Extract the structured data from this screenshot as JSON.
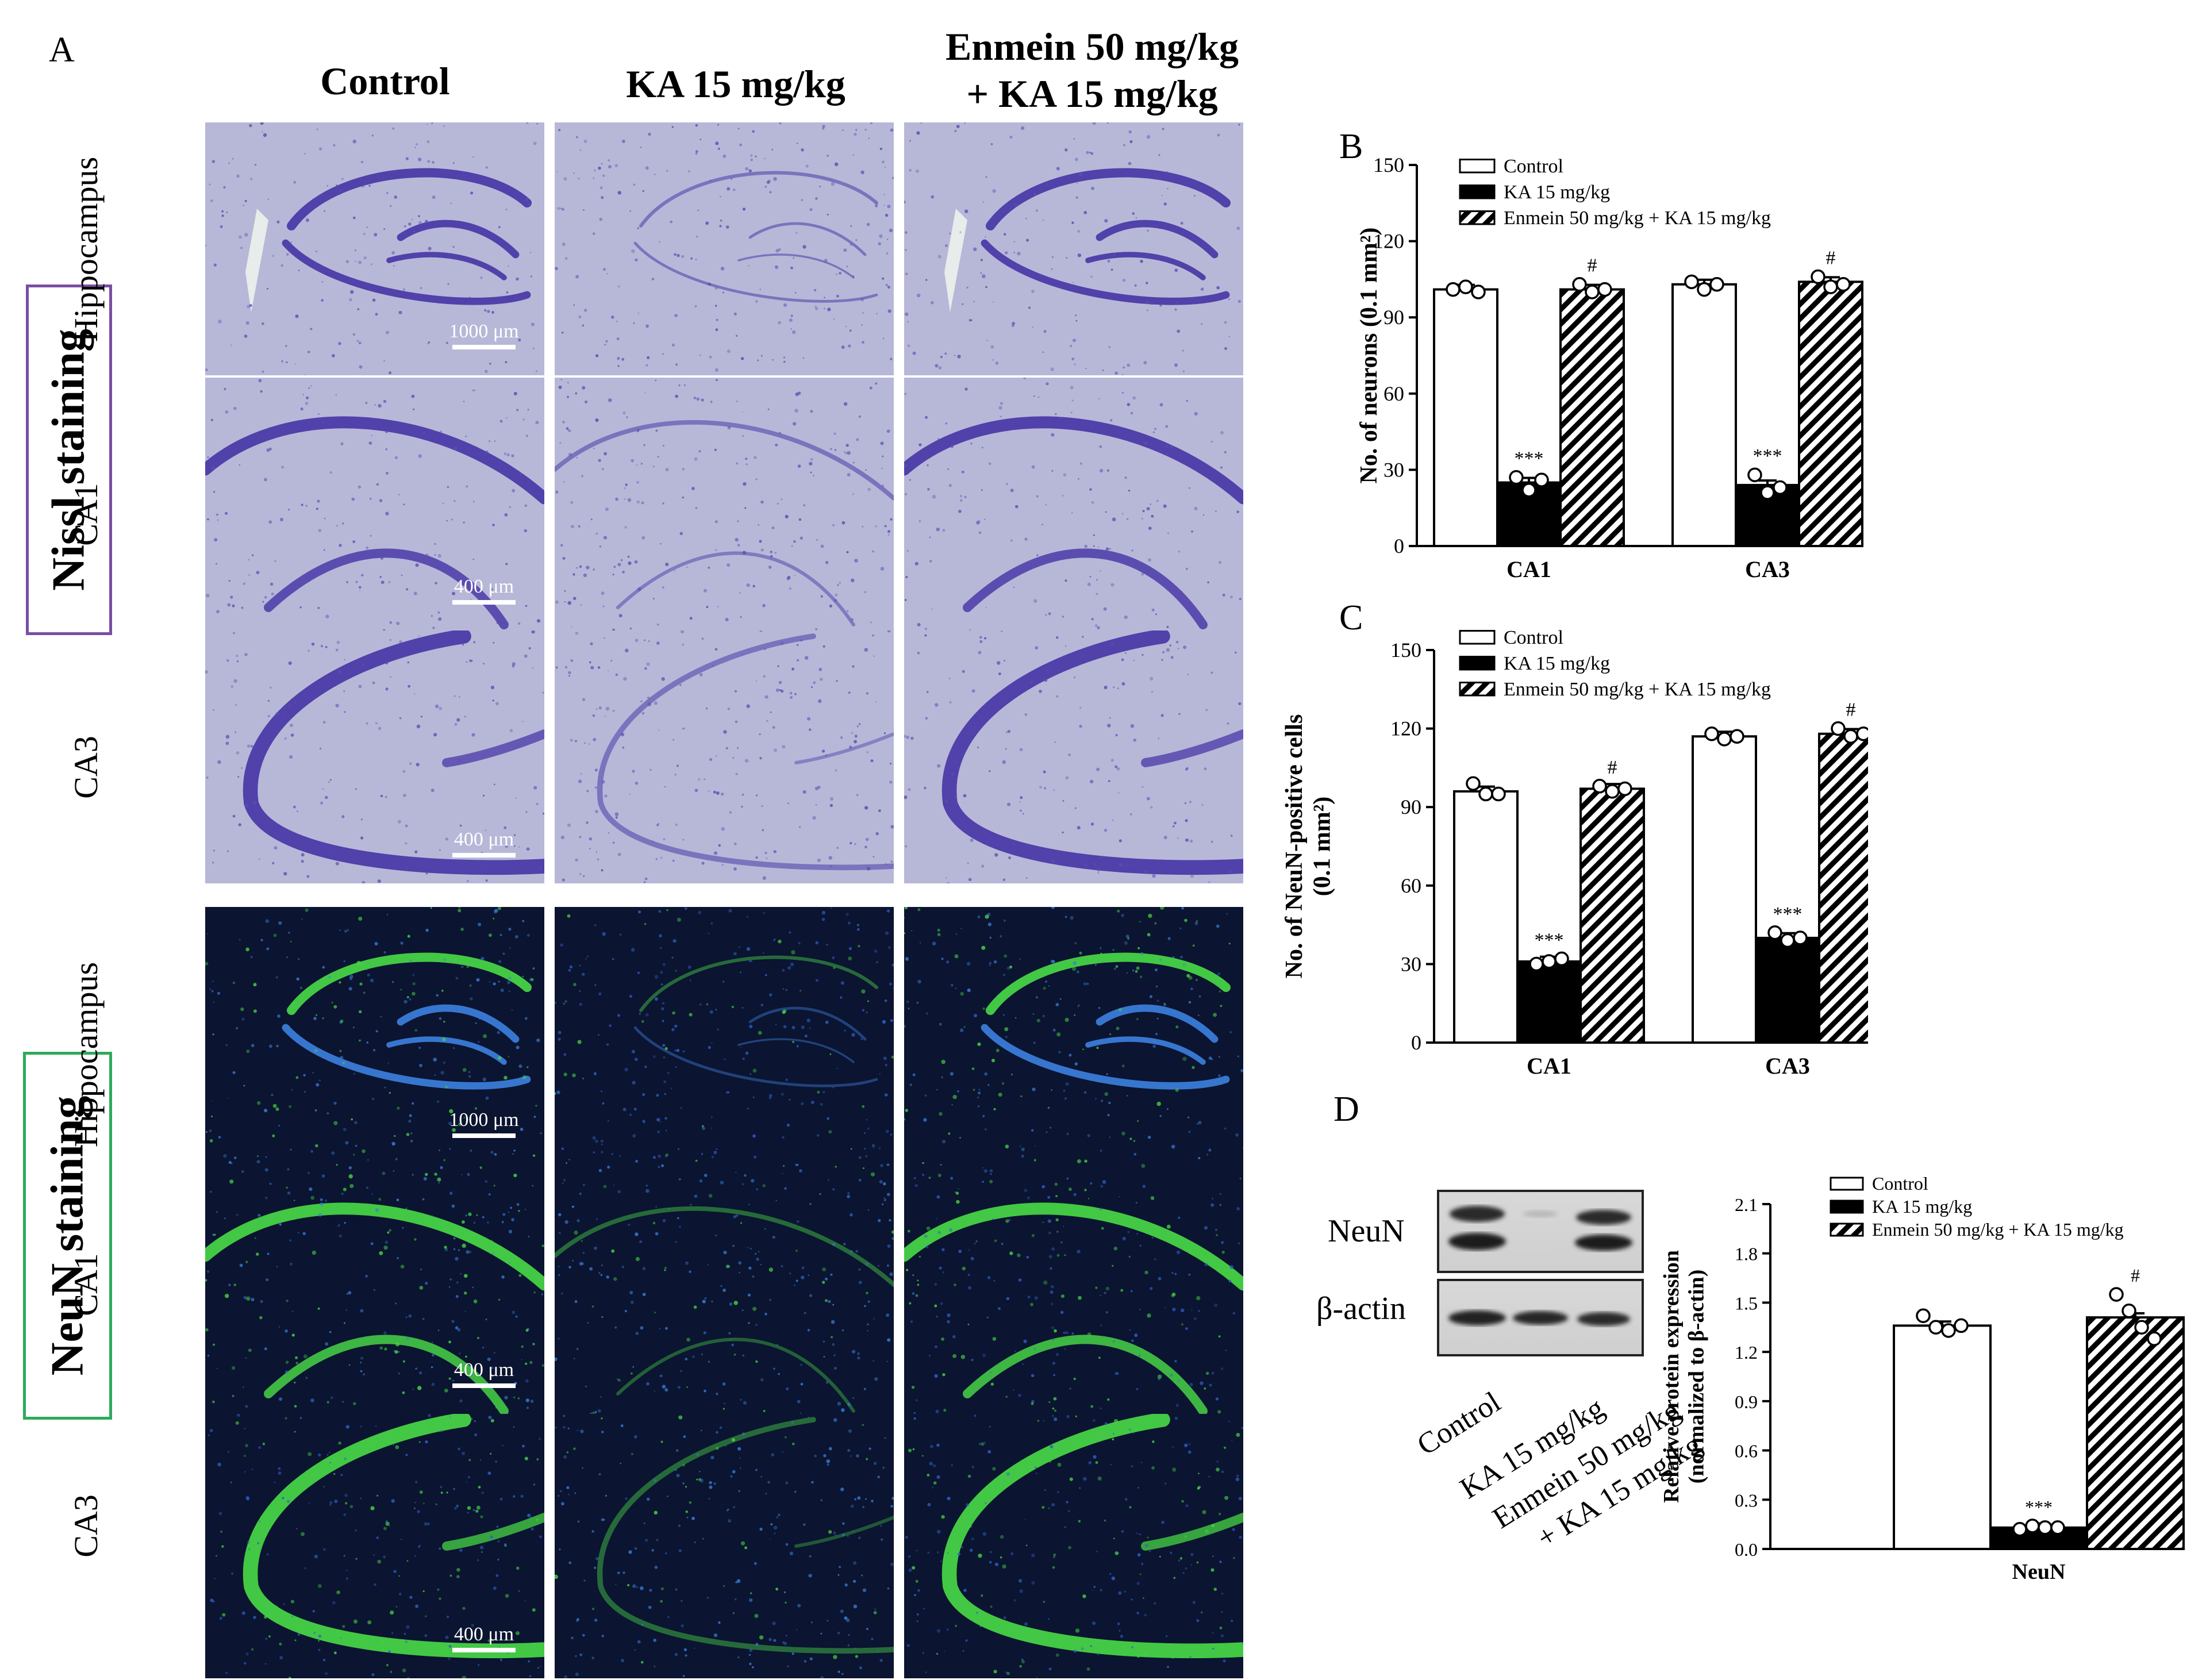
{
  "panel_labels": {
    "a": "A",
    "b": "B",
    "c": "C",
    "d": "D"
  },
  "figure_a": {
    "column_titles": [
      "Control",
      "KA 15 mg/kg",
      "Enmein 50 mg/kg\n+ KA 15 mg/kg"
    ],
    "stains": [
      {
        "label": "Nissl staining",
        "border_color": "#7a4ea3",
        "rows": [
          {
            "label": "Hippocampus",
            "scale": "1000 μm"
          },
          {
            "label": "CA1",
            "scale": "400 μm"
          },
          {
            "label": "CA3",
            "scale": "400 μm"
          }
        ]
      },
      {
        "label": "NeuN staining",
        "border_color": "#2eaa5a",
        "rows": [
          {
            "label": "Hippocampus",
            "scale": "1000 μm"
          },
          {
            "label": "CA1",
            "scale": "400 μm"
          },
          {
            "label": "CA3",
            "scale": "400 μm"
          }
        ]
      }
    ],
    "colors": {
      "nissl_bg": "#b7b8d8",
      "nissl_stain": "#4b3aa8",
      "neun_bg": "#0b1430",
      "neun_green": "#46d246",
      "neun_blue": "#3a7bd8"
    }
  },
  "chart_data": [
    {
      "type": "bar",
      "panel": "B",
      "categories": [
        "CA1",
        "CA3"
      ],
      "ylabel": "No. of neurons (0.1 mm²)",
      "ylim": [
        0,
        150
      ],
      "yticks": [
        "0",
        "30",
        "60",
        "90",
        "120",
        "150"
      ],
      "series": [
        {
          "name": "Control",
          "values": [
            101,
            103
          ],
          "fill": "white",
          "points": [
            [
              101,
              102,
              100
            ],
            [
              104,
              101,
              103
            ]
          ]
        },
        {
          "name": "KA 15 mg/kg",
          "values": [
            25,
            24
          ],
          "fill": "black",
          "points": [
            [
              27,
              22,
              26
            ],
            [
              28,
              21,
              23
            ]
          ]
        },
        {
          "name": "Enmein 50 mg/kg + KA 15 mg/kg",
          "values": [
            101,
            104
          ],
          "fill": "hatch",
          "points": [
            [
              103,
              100,
              101
            ],
            [
              106,
              102,
              103
            ]
          ]
        }
      ],
      "annotations": [
        [
          "***",
          "#"
        ],
        [
          "***",
          "#"
        ]
      ],
      "legend": "top-left"
    },
    {
      "type": "bar",
      "panel": "C",
      "categories": [
        "CA1",
        "CA3"
      ],
      "ylabel": "No. of NeuN-positive cells\n(0.1 mm²)",
      "ylim": [
        0,
        150
      ],
      "yticks": [
        "0",
        "30",
        "60",
        "90",
        "120",
        "150"
      ],
      "series": [
        {
          "name": "Control",
          "values": [
            96,
            117
          ],
          "fill": "white",
          "points": [
            [
              99,
              95,
              95
            ],
            [
              118,
              116,
              117
            ]
          ]
        },
        {
          "name": "KA 15 mg/kg",
          "values": [
            31,
            40
          ],
          "fill": "black",
          "points": [
            [
              30,
              31,
              32
            ],
            [
              42,
              39,
              40
            ]
          ]
        },
        {
          "name": "Enmein 50 mg/kg + KA 15 mg/kg",
          "values": [
            97,
            118
          ],
          "fill": "hatch",
          "points": [
            [
              98,
              96,
              97
            ],
            [
              120,
              117,
              118
            ]
          ]
        }
      ],
      "annotations": [
        [
          "***",
          "#"
        ],
        [
          "***",
          "#"
        ]
      ],
      "legend": "top-left"
    },
    {
      "type": "bar",
      "panel": "D",
      "categories": [
        "NeuN"
      ],
      "ylabel": "Relative protein expression\n(normalized to β-actin)",
      "ylim": [
        0,
        2.1
      ],
      "yticks": [
        "0.0",
        "0.3",
        "0.6",
        "0.9",
        "1.2",
        "1.5",
        "1.8",
        "2.1"
      ],
      "series": [
        {
          "name": "Control",
          "values": [
            1.36
          ],
          "fill": "white",
          "points": [
            [
              1.42,
              1.35,
              1.33,
              1.36
            ]
          ]
        },
        {
          "name": "KA 15 mg/kg",
          "values": [
            0.13
          ],
          "fill": "black",
          "points": [
            [
              0.12,
              0.14,
              0.13,
              0.13
            ]
          ]
        },
        {
          "name": "Enmein 50 mg/kg + KA 15 mg/kg",
          "values": [
            1.41
          ],
          "fill": "hatch",
          "points": [
            [
              1.55,
              1.45,
              1.35,
              1.28
            ]
          ]
        }
      ],
      "annotations": [
        [
          "***",
          "#"
        ]
      ],
      "legend": "top-left"
    }
  ],
  "western_blot": {
    "bands": [
      "NeuN",
      "β-actin"
    ],
    "lanes": [
      "Control",
      "KA 15 mg/kg",
      "Enmein 50 mg/kg\n+ KA 15 mg/kg"
    ]
  }
}
